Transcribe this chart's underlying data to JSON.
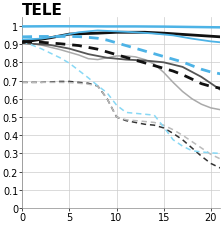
{
  "title": "TELE",
  "xlim": [
    0,
    21
  ],
  "ylim": [
    0,
    1.05
  ],
  "xticks": [
    0,
    5,
    10,
    15,
    20
  ],
  "yticks": [
    0,
    0.1,
    0.2,
    0.3,
    0.4,
    0.5,
    0.6,
    0.7,
    0.8,
    0.9,
    1.0
  ],
  "ytick_labels": [
    "0",
    "0.1",
    "0.2",
    "0.3",
    "0.4",
    "0.5",
    "0.6",
    "0.7",
    "0.8",
    "0.9",
    "1"
  ],
  "lines": [
    {
      "label": "black_thick_solid",
      "x": [
        0,
        3,
        5,
        8,
        10,
        13,
        15,
        18,
        21
      ],
      "y": [
        0.91,
        0.935,
        0.955,
        0.96,
        0.965,
        0.965,
        0.96,
        0.95,
        0.94
      ],
      "color": "#111111",
      "lw": 2.0,
      "ls": "solid",
      "zorder": 4
    },
    {
      "label": "dark_gray_solid",
      "x": [
        0,
        3,
        5,
        7,
        9,
        11,
        13,
        15,
        17,
        19,
        21
      ],
      "y": [
        0.905,
        0.895,
        0.875,
        0.845,
        0.825,
        0.815,
        0.81,
        0.8,
        0.775,
        0.72,
        0.65
      ],
      "color": "#555555",
      "lw": 1.3,
      "ls": "solid",
      "zorder": 3
    },
    {
      "label": "gray_solid",
      "x": [
        0,
        2,
        4,
        5,
        6,
        7,
        8,
        9,
        10,
        11,
        12,
        13,
        14,
        15,
        16,
        17,
        18,
        19,
        20,
        21
      ],
      "y": [
        0.91,
        0.895,
        0.87,
        0.855,
        0.84,
        0.82,
        0.815,
        0.825,
        0.835,
        0.835,
        0.83,
        0.815,
        0.79,
        0.745,
        0.69,
        0.64,
        0.6,
        0.57,
        0.55,
        0.54
      ],
      "color": "#aaaaaa",
      "lw": 1.1,
      "ls": "solid",
      "zorder": 2
    },
    {
      "label": "black_dashed_lower",
      "x": [
        0,
        2,
        4,
        5,
        6,
        7,
        8,
        9,
        10,
        11,
        12,
        13,
        14,
        15,
        16,
        17,
        18,
        19,
        20,
        21
      ],
      "y": [
        0.69,
        0.69,
        0.695,
        0.695,
        0.69,
        0.685,
        0.67,
        0.6,
        0.5,
        0.48,
        0.47,
        0.46,
        0.455,
        0.44,
        0.41,
        0.375,
        0.33,
        0.285,
        0.245,
        0.22
      ],
      "color": "#333333",
      "lw": 1.1,
      "ls": "dashed",
      "zorder": 2
    },
    {
      "label": "gray_dashed_lower",
      "x": [
        0,
        2,
        4,
        5,
        6,
        7,
        8,
        9,
        10,
        11,
        12,
        13,
        14,
        15,
        16,
        17,
        18,
        19,
        20,
        21
      ],
      "y": [
        0.69,
        0.69,
        0.69,
        0.689,
        0.685,
        0.68,
        0.67,
        0.6,
        0.5,
        0.485,
        0.48,
        0.475,
        0.47,
        0.455,
        0.43,
        0.4,
        0.365,
        0.33,
        0.295,
        0.27
      ],
      "color": "#bbbbbb",
      "lw": 1.1,
      "ls": "dashed",
      "zorder": 2
    },
    {
      "label": "blue_top_solid",
      "x": [
        0,
        3,
        6,
        9,
        12,
        15,
        18,
        21
      ],
      "y": [
        0.997,
        0.998,
        0.998,
        0.997,
        0.997,
        0.996,
        0.994,
        0.992
      ],
      "color": "#4db3e6",
      "lw": 1.8,
      "ls": "solid",
      "zorder": 5
    },
    {
      "label": "blue_mid_solid",
      "x": [
        0,
        2,
        4,
        5,
        6,
        8,
        10,
        12,
        14,
        16,
        18,
        20,
        21
      ],
      "y": [
        0.925,
        0.93,
        0.945,
        0.955,
        0.965,
        0.975,
        0.97,
        0.965,
        0.958,
        0.948,
        0.93,
        0.915,
        0.91
      ],
      "color": "#4db3e6",
      "lw": 1.3,
      "ls": "solid",
      "zorder": 4
    },
    {
      "label": "black_thick_dashed",
      "x": [
        0,
        2,
        4,
        5,
        6,
        7,
        8,
        9,
        10,
        11,
        12,
        13,
        14,
        15,
        16,
        17,
        18,
        19,
        20,
        21
      ],
      "y": [
        0.915,
        0.91,
        0.902,
        0.897,
        0.892,
        0.882,
        0.872,
        0.857,
        0.842,
        0.827,
        0.812,
        0.797,
        0.782,
        0.767,
        0.752,
        0.732,
        0.708,
        0.683,
        0.668,
        0.658
      ],
      "color": "#111111",
      "lw": 2.0,
      "ls": "dashed",
      "zorder": 5
    },
    {
      "label": "blue_thick_dashed",
      "x": [
        0,
        2,
        4,
        5,
        6,
        7,
        8,
        9,
        10,
        11,
        12,
        13,
        14,
        15,
        16,
        17,
        18,
        19,
        20,
        21
      ],
      "y": [
        0.94,
        0.942,
        0.942,
        0.942,
        0.941,
        0.937,
        0.932,
        0.922,
        0.907,
        0.892,
        0.877,
        0.862,
        0.847,
        0.832,
        0.817,
        0.802,
        0.782,
        0.762,
        0.747,
        0.737
      ],
      "color": "#4db3e6",
      "lw": 2.0,
      "ls": "dashed",
      "zorder": 5
    },
    {
      "label": "cyan_dashed",
      "x": [
        0,
        2,
        4,
        5,
        6,
        7,
        8,
        9,
        10,
        11,
        12,
        13,
        14,
        15,
        16,
        17,
        18,
        19,
        20,
        21
      ],
      "y": [
        0.915,
        0.875,
        0.825,
        0.795,
        0.755,
        0.715,
        0.672,
        0.632,
        0.565,
        0.525,
        0.52,
        0.515,
        0.51,
        0.445,
        0.375,
        0.34,
        0.315,
        0.308,
        0.303,
        0.3
      ],
      "color": "#87d8f5",
      "lw": 1.1,
      "ls": "dashed",
      "zorder": 3
    }
  ],
  "background_color": "#ffffff",
  "grid_color": "#cccccc",
  "title_fontsize": 11,
  "tick_fontsize": 7
}
